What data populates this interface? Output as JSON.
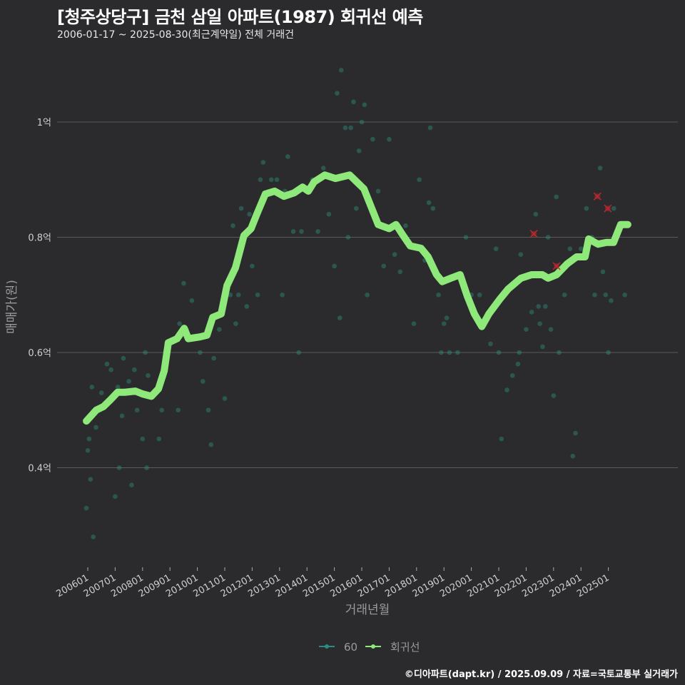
{
  "chart_data": {
    "type": "scatter",
    "title": "[청주상당구] 금천 삼일 아파트(1987) 회귀선 예측",
    "subtitle": "2006-01-17 ~ 2025-08-30(최근계약일) 전체 거래건",
    "xlabel": "거래년월",
    "ylabel": "매매가(원)",
    "x_ticks": [
      "200601",
      "200701",
      "200801",
      "200901",
      "201001",
      "201101",
      "201201",
      "201301",
      "201401",
      "201501",
      "201601",
      "201701",
      "201801",
      "201901",
      "202001",
      "202101",
      "202201",
      "202301",
      "202401",
      "202501"
    ],
    "y_ticks": [
      {
        "value": 0.4,
        "label": "0.4억"
      },
      {
        "value": 0.6,
        "label": "0.6억"
      },
      {
        "value": 0.8,
        "label": "0.8억"
      },
      {
        "value": 1.0,
        "label": "1억"
      }
    ],
    "ylim": [
      0.255,
      1.135
    ],
    "xlim": [
      2005.4,
      2026.2
    ],
    "grid": true,
    "legend_position": "bottom",
    "legend": [
      {
        "label": "60",
        "color": "#2a8c86"
      },
      {
        "label": "회귀선",
        "color": "#8ee87a"
      }
    ],
    "colors": {
      "scatter": "#2f8f7f",
      "regression": "#8ee87a",
      "outlier": "#c0282d",
      "background": "#2b2b2d",
      "grid": "#5a5a5a"
    },
    "series": [
      {
        "name": "60",
        "kind": "scatter",
        "points": [
          [
            2005.95,
            0.33
          ],
          [
            2006.0,
            0.43
          ],
          [
            2006.05,
            0.45
          ],
          [
            2006.1,
            0.38
          ],
          [
            2006.15,
            0.54
          ],
          [
            2006.2,
            0.28
          ],
          [
            2006.25,
            0.5
          ],
          [
            2006.3,
            0.47
          ],
          [
            2006.5,
            0.53
          ],
          [
            2006.7,
            0.58
          ],
          [
            2006.85,
            0.57
          ],
          [
            2007.0,
            0.35
          ],
          [
            2007.1,
            0.54
          ],
          [
            2007.15,
            0.4
          ],
          [
            2007.25,
            0.49
          ],
          [
            2007.3,
            0.59
          ],
          [
            2007.5,
            0.55
          ],
          [
            2007.6,
            0.37
          ],
          [
            2007.7,
            0.57
          ],
          [
            2007.8,
            0.5
          ],
          [
            2008.0,
            0.45
          ],
          [
            2008.1,
            0.6
          ],
          [
            2008.15,
            0.4
          ],
          [
            2008.2,
            0.56
          ],
          [
            2008.6,
            0.45
          ],
          [
            2008.7,
            0.5
          ],
          [
            2009.0,
            0.62
          ],
          [
            2009.3,
            0.5
          ],
          [
            2009.35,
            0.65
          ],
          [
            2009.5,
            0.72
          ],
          [
            2009.6,
            0.64
          ],
          [
            2009.8,
            0.69
          ],
          [
            2010.1,
            0.6
          ],
          [
            2010.2,
            0.55
          ],
          [
            2010.4,
            0.5
          ],
          [
            2010.5,
            0.44
          ],
          [
            2010.6,
            0.59
          ],
          [
            2010.8,
            0.64
          ],
          [
            2011.0,
            0.52
          ],
          [
            2011.2,
            0.7
          ],
          [
            2011.3,
            0.82
          ],
          [
            2011.4,
            0.65
          ],
          [
            2011.5,
            0.7
          ],
          [
            2011.6,
            0.85
          ],
          [
            2011.8,
            0.68
          ],
          [
            2011.9,
            0.84
          ],
          [
            2012.0,
            0.75
          ],
          [
            2012.2,
            0.7
          ],
          [
            2012.3,
            0.9
          ],
          [
            2012.4,
            0.93
          ],
          [
            2012.7,
            0.9
          ],
          [
            2012.9,
            0.9
          ],
          [
            2013.1,
            0.7
          ],
          [
            2013.2,
            0.88
          ],
          [
            2013.3,
            0.94
          ],
          [
            2013.5,
            0.81
          ],
          [
            2013.7,
            0.6
          ],
          [
            2013.8,
            0.81
          ],
          [
            2014.2,
            0.9
          ],
          [
            2014.4,
            0.81
          ],
          [
            2014.6,
            0.92
          ],
          [
            2014.8,
            0.84
          ],
          [
            2015.0,
            0.75
          ],
          [
            2015.1,
            1.05
          ],
          [
            2015.2,
            0.66
          ],
          [
            2015.25,
            1.09
          ],
          [
            2015.4,
            0.99
          ],
          [
            2015.5,
            0.8
          ],
          [
            2015.6,
            0.99
          ],
          [
            2015.7,
            1.035
          ],
          [
            2015.8,
            0.85
          ],
          [
            2015.9,
            0.95
          ],
          [
            2016.0,
            1.0
          ],
          [
            2016.1,
            1.03
          ],
          [
            2016.2,
            0.7
          ],
          [
            2016.4,
            0.97
          ],
          [
            2016.6,
            0.88
          ],
          [
            2016.8,
            0.75
          ],
          [
            2017.0,
            0.97
          ],
          [
            2017.2,
            0.77
          ],
          [
            2017.4,
            0.74
          ],
          [
            2017.6,
            0.82
          ],
          [
            2017.9,
            0.65
          ],
          [
            2018.1,
            0.9
          ],
          [
            2018.3,
            0.76
          ],
          [
            2018.45,
            0.86
          ],
          [
            2018.5,
            0.99
          ],
          [
            2018.6,
            0.85
          ],
          [
            2018.8,
            0.7
          ],
          [
            2018.9,
            0.6
          ],
          [
            2019.0,
            0.65
          ],
          [
            2019.1,
            0.66
          ],
          [
            2019.2,
            0.6
          ],
          [
            2019.5,
            0.6
          ],
          [
            2019.8,
            0.8
          ],
          [
            2020.0,
            0.7
          ],
          [
            2020.3,
            0.7
          ],
          [
            2020.7,
            0.615
          ],
          [
            2020.9,
            0.78
          ],
          [
            2021.0,
            0.6
          ],
          [
            2021.1,
            0.45
          ],
          [
            2021.3,
            0.535
          ],
          [
            2021.5,
            0.56
          ],
          [
            2021.7,
            0.58
          ],
          [
            2021.75,
            0.6
          ],
          [
            2021.8,
            0.77
          ],
          [
            2022.0,
            0.64
          ],
          [
            2022.2,
            0.67
          ],
          [
            2022.35,
            0.84
          ],
          [
            2022.45,
            0.68
          ],
          [
            2022.5,
            0.65
          ],
          [
            2022.6,
            0.61
          ],
          [
            2022.7,
            0.68
          ],
          [
            2022.8,
            0.8
          ],
          [
            2022.9,
            0.64
          ],
          [
            2023.0,
            0.525
          ],
          [
            2023.1,
            0.87
          ],
          [
            2023.2,
            0.6
          ],
          [
            2023.4,
            0.7
          ],
          [
            2023.6,
            0.78
          ],
          [
            2023.7,
            0.42
          ],
          [
            2023.8,
            0.46
          ],
          [
            2024.0,
            0.78
          ],
          [
            2024.2,
            0.85
          ],
          [
            2024.4,
            0.8
          ],
          [
            2024.5,
            0.7
          ],
          [
            2024.7,
            0.92
          ],
          [
            2024.8,
            0.74
          ],
          [
            2024.9,
            0.7
          ],
          [
            2025.0,
            0.6
          ],
          [
            2025.1,
            0.69
          ],
          [
            2025.2,
            0.85
          ],
          [
            2025.6,
            0.7
          ]
        ]
      },
      {
        "name": "outliers",
        "kind": "x-marker",
        "points": [
          [
            2022.28,
            0.806
          ],
          [
            2023.11,
            0.75
          ],
          [
            2024.6,
            0.871
          ],
          [
            2024.98,
            0.85
          ]
        ]
      },
      {
        "name": "회귀선",
        "kind": "line",
        "points": [
          [
            2005.95,
            0.481
          ],
          [
            2006.31,
            0.5
          ],
          [
            2006.57,
            0.506
          ],
          [
            2006.83,
            0.518
          ],
          [
            2007.09,
            0.531
          ],
          [
            2007.35,
            0.531
          ],
          [
            2007.74,
            0.533
          ],
          [
            2008.0,
            0.528
          ],
          [
            2008.32,
            0.524
          ],
          [
            2008.58,
            0.537
          ],
          [
            2008.79,
            0.568
          ],
          [
            2008.94,
            0.617
          ],
          [
            2009.26,
            0.624
          ],
          [
            2009.52,
            0.642
          ],
          [
            2009.67,
            0.624
          ],
          [
            2010.09,
            0.627
          ],
          [
            2010.35,
            0.63
          ],
          [
            2010.56,
            0.661
          ],
          [
            2010.87,
            0.667
          ],
          [
            2011.08,
            0.716
          ],
          [
            2011.39,
            0.747
          ],
          [
            2011.7,
            0.803
          ],
          [
            2011.96,
            0.815
          ],
          [
            2012.17,
            0.84
          ],
          [
            2012.48,
            0.875
          ],
          [
            2012.82,
            0.88
          ],
          [
            2013.16,
            0.871
          ],
          [
            2013.53,
            0.877
          ],
          [
            2013.84,
            0.887
          ],
          [
            2014.05,
            0.88
          ],
          [
            2014.26,
            0.896
          ],
          [
            2014.65,
            0.908
          ],
          [
            2015.04,
            0.902
          ],
          [
            2015.56,
            0.908
          ],
          [
            2015.82,
            0.896
          ],
          [
            2016.08,
            0.884
          ],
          [
            2016.34,
            0.853
          ],
          [
            2016.6,
            0.822
          ],
          [
            2017.0,
            0.815
          ],
          [
            2017.25,
            0.822
          ],
          [
            2017.51,
            0.803
          ],
          [
            2017.77,
            0.785
          ],
          [
            2018.16,
            0.781
          ],
          [
            2018.42,
            0.766
          ],
          [
            2018.73,
            0.735
          ],
          [
            2018.94,
            0.723
          ],
          [
            2019.25,
            0.729
          ],
          [
            2019.59,
            0.735
          ],
          [
            2019.85,
            0.698
          ],
          [
            2020.11,
            0.667
          ],
          [
            2020.38,
            0.645
          ],
          [
            2020.64,
            0.667
          ],
          [
            2021.03,
            0.692
          ],
          [
            2021.34,
            0.71
          ],
          [
            2021.81,
            0.729
          ],
          [
            2022.2,
            0.735
          ],
          [
            2022.59,
            0.735
          ],
          [
            2022.8,
            0.729
          ],
          [
            2023.11,
            0.735
          ],
          [
            2023.5,
            0.754
          ],
          [
            2023.84,
            0.766
          ],
          [
            2024.15,
            0.766
          ],
          [
            2024.28,
            0.797
          ],
          [
            2024.62,
            0.788
          ],
          [
            2024.93,
            0.791
          ],
          [
            2025.19,
            0.791
          ],
          [
            2025.45,
            0.822
          ],
          [
            2025.71,
            0.822
          ]
        ]
      }
    ]
  },
  "footer": "©디아파트(dapt.kr) / 2025.09.09 / 자료=국토교통부 실거래가"
}
